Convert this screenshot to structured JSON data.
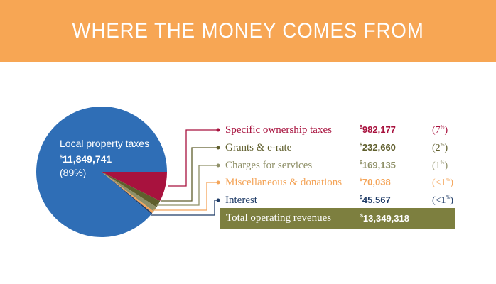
{
  "title": "WHERE THE MONEY COMES FROM",
  "colors": {
    "banner": "#f7a654",
    "local": "#2f6eb6",
    "specific": "#a8123e",
    "grants": "#5f5e2c",
    "charges": "#8f9068",
    "misc": "#f4a55a",
    "interest": "#1f3b66",
    "total_bg": "#7d7f3f"
  },
  "pie_label": {
    "name": "Local property taxes",
    "currency": "$",
    "amount": "11,849,741",
    "percent": "(89%)"
  },
  "rows": [
    {
      "name": "Specific ownership taxes",
      "currency": "$",
      "amount": "982,177",
      "pct_num": "(7",
      "pct_sign": "%",
      "pct_close": ")"
    },
    {
      "name": "Grants & e-rate",
      "currency": "$",
      "amount": "232,660",
      "pct_num": "(2",
      "pct_sign": "%",
      "pct_close": ")"
    },
    {
      "name": "Charges for services",
      "currency": "$",
      "amount": "169,135",
      "pct_num": "(1",
      "pct_sign": "%",
      "pct_close": ")"
    },
    {
      "name": "Miscellaneous & donations",
      "currency": "$",
      "amount": "70,038",
      "pct_num": "(<1",
      "pct_sign": "%",
      "pct_close": ")"
    },
    {
      "name": "Interest",
      "currency": "$",
      "amount": "45,567",
      "pct_num": "(<1",
      "pct_sign": "%",
      "pct_close": ")"
    }
  ],
  "total": {
    "name": "Total operating revenues",
    "currency": "$",
    "amount": "13,349,318"
  },
  "chart_data": {
    "type": "pie",
    "title": "WHERE THE MONEY COMES FROM",
    "categories": [
      "Local property taxes",
      "Specific ownership taxes",
      "Grants & e-rate",
      "Charges for services",
      "Miscellaneous & donations",
      "Interest"
    ],
    "values": [
      11849741,
      982177,
      232660,
      169135,
      70038,
      45567
    ],
    "total": 13349318
  }
}
